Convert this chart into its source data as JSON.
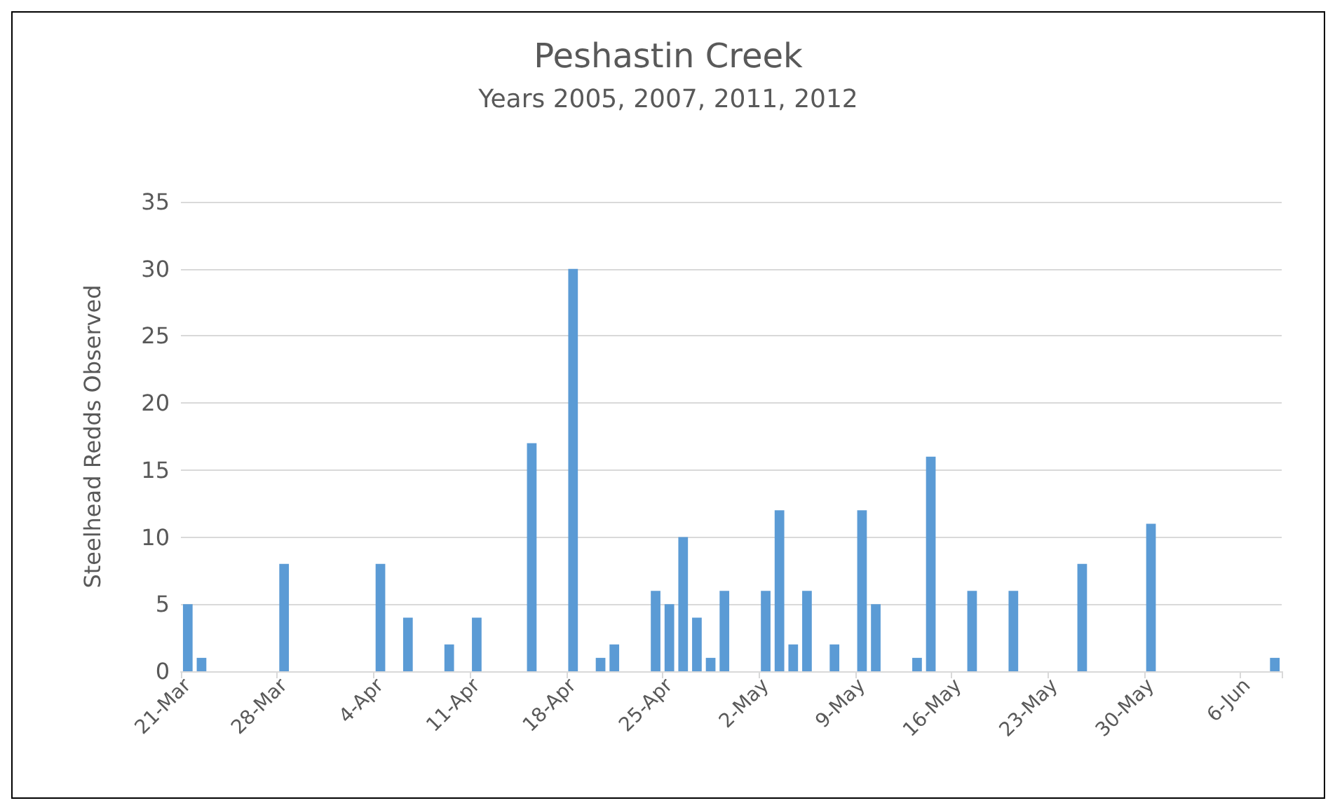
{
  "chart_data": {
    "type": "bar",
    "title": "Peshastin Creek",
    "subtitle": "Years 2005, 2007, 2011, 2012",
    "ylabel": "Steelhead Redds Observed",
    "categories": [
      "21-Mar",
      null,
      null,
      null,
      null,
      null,
      null,
      "28-Mar",
      null,
      null,
      null,
      null,
      null,
      null,
      "4-Apr",
      null,
      null,
      null,
      null,
      null,
      null,
      "11-Apr",
      null,
      null,
      null,
      null,
      null,
      null,
      "18-Apr",
      null,
      null,
      null,
      null,
      null,
      null,
      "25-Apr",
      null,
      null,
      null,
      null,
      null,
      null,
      "2-May",
      null,
      null,
      null,
      null,
      null,
      null,
      "9-May",
      null,
      null,
      null,
      null,
      null,
      null,
      "16-May",
      null,
      null,
      null,
      null,
      null,
      null,
      "23-May",
      null,
      null,
      null,
      null,
      null,
      null,
      "30-May",
      null,
      null,
      null,
      null,
      null,
      null,
      "6-Jun",
      null,
      null
    ],
    "values": [
      5,
      1,
      null,
      null,
      null,
      null,
      null,
      8,
      null,
      null,
      null,
      null,
      null,
      null,
      8,
      null,
      4,
      null,
      null,
      2,
      null,
      4,
      null,
      null,
      null,
      17,
      null,
      null,
      30,
      null,
      1,
      2,
      null,
      null,
      6,
      5,
      10,
      4,
      1,
      6,
      null,
      null,
      6,
      12,
      2,
      6,
      null,
      2,
      null,
      12,
      5,
      null,
      null,
      1,
      16,
      null,
      null,
      6,
      null,
      null,
      6,
      null,
      null,
      null,
      null,
      8,
      null,
      null,
      null,
      null,
      11,
      null,
      null,
      null,
      null,
      null,
      null,
      null,
      null,
      1
    ],
    "color": "#5b9bd5",
    "ylim": [
      0,
      35
    ],
    "yticks": [
      0,
      5,
      10,
      15,
      20,
      25,
      30,
      35
    ],
    "grid": "y"
  }
}
